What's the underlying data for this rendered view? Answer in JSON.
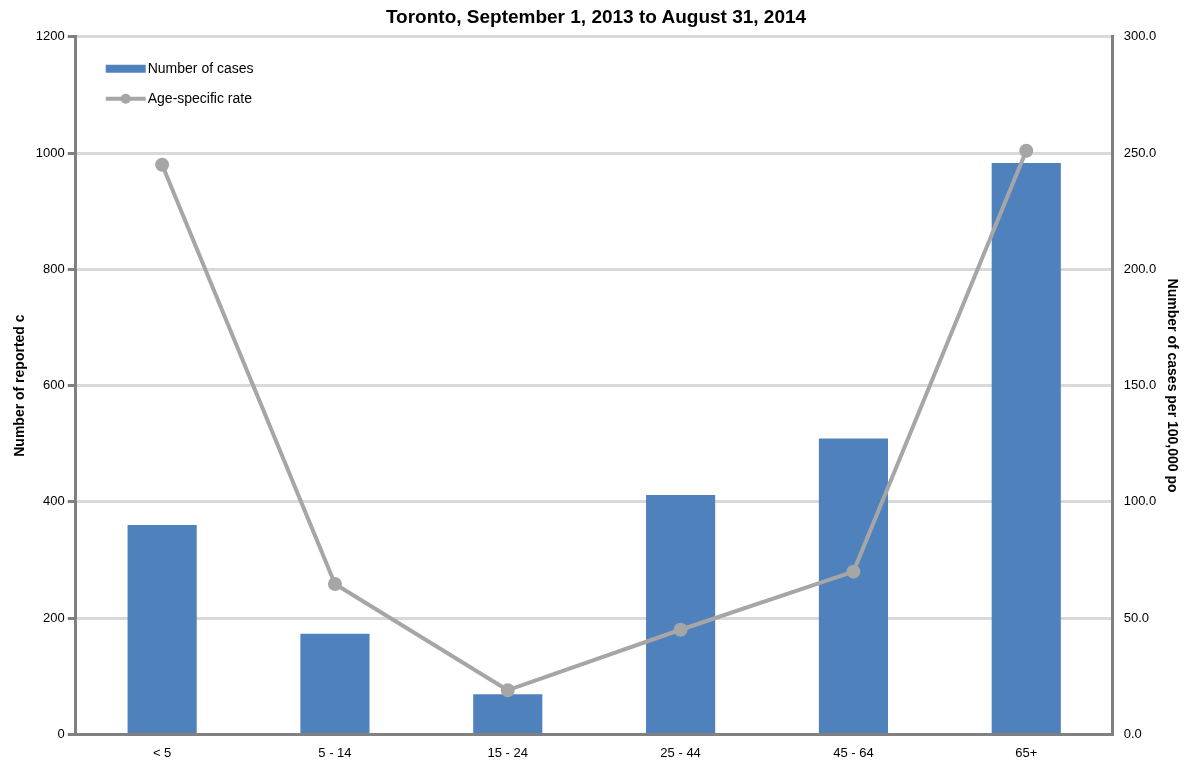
{
  "chart_data": {
    "type": "bar",
    "title": "Toronto, September 1, 2013 to August 31, 2014",
    "ylabel": "Number of reported c",
    "y2label": "Number of cases per 100,000 po",
    "categories": [
      "< 5",
      "5 - 14",
      "15 - 24",
      "25 - 44",
      "45 - 64",
      "65+"
    ],
    "series": [
      {
        "name": "Number of cases",
        "color": "#4f81bd",
        "values": [
          360,
          173,
          69,
          412,
          509,
          983
        ]
      },
      {
        "name": "Age-specific rate",
        "type": "line",
        "axis": "y2",
        "color": "#a6a6a6",
        "marker": "circle",
        "values": [
          245,
          64.7,
          19,
          45,
          70,
          251
        ]
      }
    ],
    "ylim": [
      0,
      1200
    ],
    "yticks": [
      0,
      200,
      400,
      600,
      800,
      1000,
      1200
    ],
    "y2lim": [
      0,
      300
    ],
    "y2ticks": [
      {
        "value": 0,
        "label": "0.0"
      },
      {
        "value": 50,
        "label": "50.0"
      },
      {
        "value": 100,
        "label": "100.0"
      },
      {
        "value": 150,
        "label": "150.0"
      },
      {
        "value": 200,
        "label": "200.0"
      },
      {
        "value": 250,
        "label": "250.0"
      },
      {
        "value": 300,
        "label": "300.0"
      }
    ],
    "grid": "y",
    "legend": "top left"
  }
}
